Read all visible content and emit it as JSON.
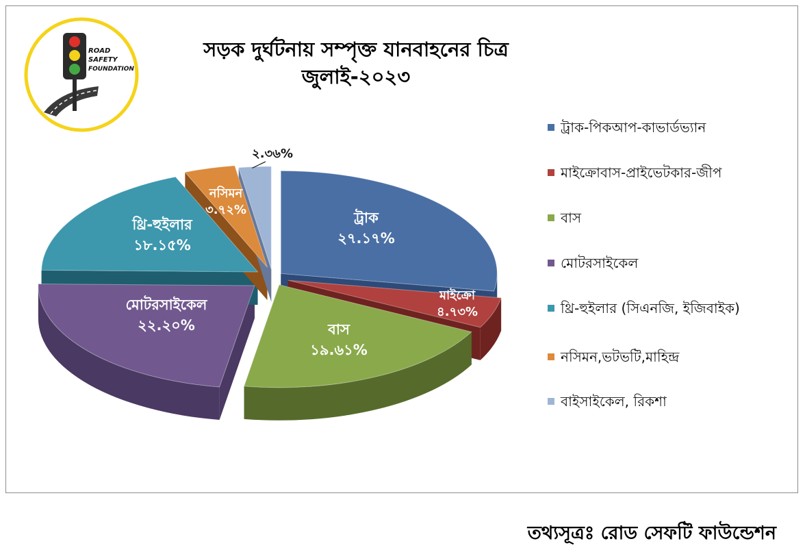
{
  "chart_data": {
    "type": "pie",
    "title": "সড়ক দুর্ঘটনায় সম্পৃক্ত যানবাহনের চিত্র",
    "subtitle": "জুলাই-২০২৩",
    "legend_position": "right",
    "slices": [
      {
        "legend": "ট্রাক-পিকআপ-কাভার্ডভ্যান",
        "label": "ট্রাক",
        "value": 27.17,
        "value_text": "২৭.১৭%",
        "color": "#4a6fa5",
        "side": "#2d4a78"
      },
      {
        "legend": "মাইক্রোবাস-প্রাইভেটকার-জীপ",
        "label": "মাইক্রো",
        "value": 4.73,
        "value_text": "৪.৭৩%",
        "color": "#b0413e",
        "side": "#6e2320"
      },
      {
        "legend": "বাস",
        "label": "বাস",
        "value": 19.61,
        "value_text": "১৯.৬১%",
        "color": "#8aa94b",
        "side": "#566b2b"
      },
      {
        "legend": "মোটরসাইকেল",
        "label": "মোটরসাইকেল",
        "value": 22.2,
        "value_text": "২২.২০%",
        "color": "#71588f",
        "side": "#4a3962"
      },
      {
        "legend": "থ্রি-হুইলার (সিএনজি, ইজিবাইক)",
        "label": "থ্রি-হুইলার",
        "value": 18.15,
        "value_text": "১৮.১৫%",
        "color": "#3d97ad",
        "side": "#1f5e6e"
      },
      {
        "legend": "নসিমন,ভটভটি,মাহিন্দ্র",
        "label": "নসিমন",
        "value": 3.72,
        "value_text": "৩.৭২%",
        "color": "#dc8a3c",
        "side": "#8d511b"
      },
      {
        "legend": "বাইসাইকেল, রিকশা",
        "label": "",
        "value": 2.36,
        "value_text": "২.৩৬%",
        "color": "#9fb5d6",
        "side": "#67799a"
      }
    ]
  },
  "logo": {
    "line1": "ROAD",
    "line2": "SAFETY",
    "line3": "FOUNDATION",
    "ring_color": "#f5d31a"
  },
  "source_note": "তথ্যসূত্রঃ রোড সেফটি ফাউন্ডেশন"
}
